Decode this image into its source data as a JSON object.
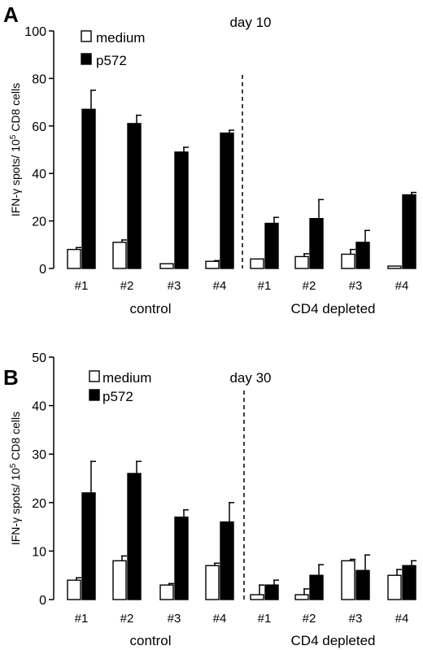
{
  "chart_data": [
    {
      "panel": "A",
      "type": "bar",
      "title": "day 10",
      "ylabel": "IFN-γ spots/ 10⁵ CD8 cells",
      "ylabel_parts": {
        "pre": "IFN-γ spots/ 10",
        "sup": "5",
        "post": " CD8 cells"
      },
      "ylim": [
        0,
        100
      ],
      "yticks": [
        0,
        20,
        40,
        60,
        80,
        100
      ],
      "categories": [
        "#1",
        "#2",
        "#3",
        "#4",
        "#1",
        "#2",
        "#3",
        "#4"
      ],
      "groups": [
        {
          "label": "control",
          "categories": [
            0,
            1,
            2,
            3
          ]
        },
        {
          "label": "CD4 depleted",
          "categories": [
            4,
            5,
            6,
            7
          ]
        }
      ],
      "separator_after_category": 3,
      "legend_placement": "top-left",
      "series": [
        {
          "name": "medium",
          "color": "#ffffff",
          "values": [
            8,
            11,
            2,
            3,
            4,
            5,
            6,
            1
          ],
          "errors": [
            0.8,
            1,
            0,
            0.3,
            0,
            1.2,
            2,
            0
          ]
        },
        {
          "name": "p572",
          "color": "#000000",
          "values": [
            67,
            61,
            49,
            57,
            19,
            21,
            11,
            31
          ],
          "errors": [
            8,
            3.5,
            2,
            1.2,
            2.5,
            8,
            5,
            1
          ]
        }
      ]
    },
    {
      "panel": "B",
      "type": "bar",
      "title": "day 30",
      "ylabel": "IFN-γ spots/ 10⁵ CD8 cells",
      "ylabel_parts": {
        "pre": "IFN-γ spots/ 10",
        "sup": "5",
        "post": " CD8 cells"
      },
      "ylim": [
        0,
        50
      ],
      "yticks": [
        0,
        10,
        20,
        30,
        40,
        50
      ],
      "categories": [
        "#1",
        "#2",
        "#3",
        "#4",
        "#1",
        "#2",
        "#3",
        "#4"
      ],
      "groups": [
        {
          "label": "control",
          "categories": [
            0,
            1,
            2,
            3
          ]
        },
        {
          "label": "CD4 depleted",
          "categories": [
            4,
            5,
            6,
            7
          ]
        }
      ],
      "separator_after_category": 3,
      "legend_placement": "top-left",
      "series": [
        {
          "name": "medium",
          "color": "#ffffff",
          "values": [
            4,
            8,
            3,
            7,
            1,
            1,
            8,
            5
          ],
          "errors": [
            0.5,
            1,
            0.3,
            0.5,
            2,
            1.2,
            0.3,
            1.2
          ]
        },
        {
          "name": "p572",
          "color": "#000000",
          "values": [
            22,
            26,
            17,
            16,
            3,
            5,
            6,
            7
          ],
          "errors": [
            6.5,
            2.5,
            1.5,
            4,
            1,
            2.2,
            3.2,
            1
          ]
        }
      ]
    }
  ]
}
